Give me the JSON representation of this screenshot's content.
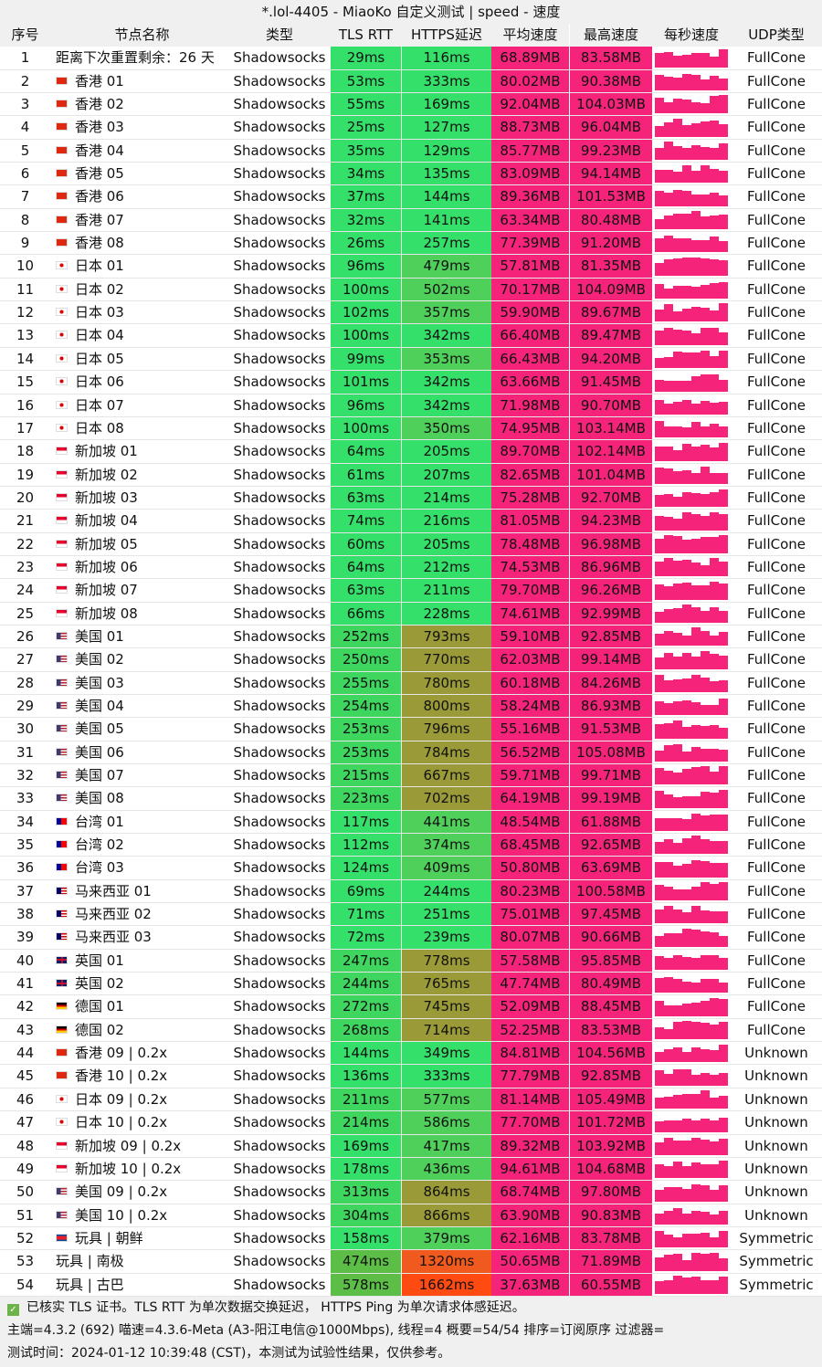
{
  "title": "*.lol-4405 - MiaoKo 自定义测试 | speed - 速度",
  "headers": [
    "序号",
    "节点名称",
    "类型",
    "TLS RTT",
    "HTTPS延迟",
    "平均速度",
    "最高速度",
    "每秒速度",
    "UDP类型"
  ],
  "colors": {
    "speed": "#f5247a",
    "green": "#35e06a",
    "olive": "#9a9a38",
    "orange": "#f05a1e",
    "header_bg": "#f0f0f0"
  },
  "rows": [
    [
      "1",
      "",
      "距离下次重置剩余：26 天",
      "Shadowsocks",
      "29ms",
      "116ms",
      "68.89MB",
      "83.58MB",
      "FullCone"
    ],
    [
      "2",
      "hk",
      "香港 01",
      "Shadowsocks",
      "53ms",
      "333ms",
      "80.02MB",
      "90.38MB",
      "FullCone"
    ],
    [
      "3",
      "hk",
      "香港 02",
      "Shadowsocks",
      "55ms",
      "169ms",
      "92.04MB",
      "104.03MB",
      "FullCone"
    ],
    [
      "4",
      "hk",
      "香港 03",
      "Shadowsocks",
      "25ms",
      "127ms",
      "88.73MB",
      "96.04MB",
      "FullCone"
    ],
    [
      "5",
      "hk",
      "香港 04",
      "Shadowsocks",
      "35ms",
      "129ms",
      "85.77MB",
      "99.23MB",
      "FullCone"
    ],
    [
      "6",
      "hk",
      "香港 05",
      "Shadowsocks",
      "34ms",
      "135ms",
      "83.09MB",
      "94.14MB",
      "FullCone"
    ],
    [
      "7",
      "hk",
      "香港 06",
      "Shadowsocks",
      "37ms",
      "144ms",
      "89.36MB",
      "101.53MB",
      "FullCone"
    ],
    [
      "8",
      "hk",
      "香港 07",
      "Shadowsocks",
      "32ms",
      "141ms",
      "63.34MB",
      "80.48MB",
      "FullCone"
    ],
    [
      "9",
      "hk",
      "香港 08",
      "Shadowsocks",
      "26ms",
      "257ms",
      "77.39MB",
      "91.20MB",
      "FullCone"
    ],
    [
      "10",
      "jp",
      "日本 01",
      "Shadowsocks",
      "96ms",
      "479ms",
      "57.81MB",
      "81.35MB",
      "FullCone"
    ],
    [
      "11",
      "jp",
      "日本 02",
      "Shadowsocks",
      "100ms",
      "502ms",
      "70.17MB",
      "104.09MB",
      "FullCone"
    ],
    [
      "12",
      "jp",
      "日本 03",
      "Shadowsocks",
      "102ms",
      "357ms",
      "59.90MB",
      "89.67MB",
      "FullCone"
    ],
    [
      "13",
      "jp",
      "日本 04",
      "Shadowsocks",
      "100ms",
      "342ms",
      "66.40MB",
      "89.47MB",
      "FullCone"
    ],
    [
      "14",
      "jp",
      "日本 05",
      "Shadowsocks",
      "99ms",
      "353ms",
      "66.43MB",
      "94.20MB",
      "FullCone"
    ],
    [
      "15",
      "jp",
      "日本 06",
      "Shadowsocks",
      "101ms",
      "342ms",
      "63.66MB",
      "91.45MB",
      "FullCone"
    ],
    [
      "16",
      "jp",
      "日本 07",
      "Shadowsocks",
      "96ms",
      "342ms",
      "71.98MB",
      "90.70MB",
      "FullCone"
    ],
    [
      "17",
      "jp",
      "日本 08",
      "Shadowsocks",
      "100ms",
      "350ms",
      "74.95MB",
      "103.14MB",
      "FullCone"
    ],
    [
      "18",
      "sg",
      "新加坡 01",
      "Shadowsocks",
      "64ms",
      "205ms",
      "89.70MB",
      "102.14MB",
      "FullCone"
    ],
    [
      "19",
      "sg",
      "新加坡 02",
      "Shadowsocks",
      "61ms",
      "207ms",
      "82.65MB",
      "101.04MB",
      "FullCone"
    ],
    [
      "20",
      "sg",
      "新加坡 03",
      "Shadowsocks",
      "63ms",
      "214ms",
      "75.28MB",
      "92.70MB",
      "FullCone"
    ],
    [
      "21",
      "sg",
      "新加坡 04",
      "Shadowsocks",
      "74ms",
      "216ms",
      "81.05MB",
      "94.23MB",
      "FullCone"
    ],
    [
      "22",
      "sg",
      "新加坡 05",
      "Shadowsocks",
      "60ms",
      "205ms",
      "78.48MB",
      "96.98MB",
      "FullCone"
    ],
    [
      "23",
      "sg",
      "新加坡 06",
      "Shadowsocks",
      "64ms",
      "212ms",
      "74.53MB",
      "86.96MB",
      "FullCone"
    ],
    [
      "24",
      "sg",
      "新加坡 07",
      "Shadowsocks",
      "63ms",
      "211ms",
      "79.70MB",
      "96.26MB",
      "FullCone"
    ],
    [
      "25",
      "sg",
      "新加坡 08",
      "Shadowsocks",
      "66ms",
      "228ms",
      "74.61MB",
      "92.99MB",
      "FullCone"
    ],
    [
      "26",
      "us",
      "美国 01",
      "Shadowsocks",
      "252ms",
      "793ms",
      "59.10MB",
      "92.85MB",
      "FullCone"
    ],
    [
      "27",
      "us",
      "美国 02",
      "Shadowsocks",
      "250ms",
      "770ms",
      "62.03MB",
      "99.14MB",
      "FullCone"
    ],
    [
      "28",
      "us",
      "美国 03",
      "Shadowsocks",
      "255ms",
      "780ms",
      "60.18MB",
      "84.26MB",
      "FullCone"
    ],
    [
      "29",
      "us",
      "美国 04",
      "Shadowsocks",
      "254ms",
      "800ms",
      "58.24MB",
      "86.93MB",
      "FullCone"
    ],
    [
      "30",
      "us",
      "美国 05",
      "Shadowsocks",
      "253ms",
      "796ms",
      "55.16MB",
      "91.53MB",
      "FullCone"
    ],
    [
      "31",
      "us",
      "美国 06",
      "Shadowsocks",
      "253ms",
      "784ms",
      "56.52MB",
      "105.08MB",
      "FullCone"
    ],
    [
      "32",
      "us",
      "美国 07",
      "Shadowsocks",
      "215ms",
      "667ms",
      "59.71MB",
      "99.71MB",
      "FullCone"
    ],
    [
      "33",
      "us",
      "美国 08",
      "Shadowsocks",
      "223ms",
      "702ms",
      "64.19MB",
      "99.19MB",
      "FullCone"
    ],
    [
      "34",
      "tw",
      "台湾 01",
      "Shadowsocks",
      "117ms",
      "441ms",
      "48.54MB",
      "61.88MB",
      "FullCone"
    ],
    [
      "35",
      "tw",
      "台湾 02",
      "Shadowsocks",
      "112ms",
      "374ms",
      "68.45MB",
      "92.65MB",
      "FullCone"
    ],
    [
      "36",
      "tw",
      "台湾 03",
      "Shadowsocks",
      "124ms",
      "409ms",
      "50.80MB",
      "63.69MB",
      "FullCone"
    ],
    [
      "37",
      "my",
      "马来西亚 01",
      "Shadowsocks",
      "69ms",
      "244ms",
      "80.23MB",
      "100.58MB",
      "FullCone"
    ],
    [
      "38",
      "my",
      "马来西亚 02",
      "Shadowsocks",
      "71ms",
      "251ms",
      "75.01MB",
      "97.45MB",
      "FullCone"
    ],
    [
      "39",
      "my",
      "马来西亚 03",
      "Shadowsocks",
      "72ms",
      "239ms",
      "80.07MB",
      "90.66MB",
      "FullCone"
    ],
    [
      "40",
      "uk",
      "英国 01",
      "Shadowsocks",
      "247ms",
      "778ms",
      "57.58MB",
      "95.85MB",
      "FullCone"
    ],
    [
      "41",
      "uk",
      "英国 02",
      "Shadowsocks",
      "244ms",
      "765ms",
      "47.74MB",
      "80.49MB",
      "FullCone"
    ],
    [
      "42",
      "de",
      "德国 01",
      "Shadowsocks",
      "272ms",
      "745ms",
      "52.09MB",
      "88.45MB",
      "FullCone"
    ],
    [
      "43",
      "de",
      "德国 02",
      "Shadowsocks",
      "268ms",
      "714ms",
      "52.25MB",
      "83.53MB",
      "FullCone"
    ],
    [
      "44",
      "hk",
      "香港 09 | 0.2x",
      "Shadowsocks",
      "144ms",
      "349ms",
      "84.81MB",
      "104.56MB",
      "Unknown"
    ],
    [
      "45",
      "hk",
      "香港 10 | 0.2x",
      "Shadowsocks",
      "136ms",
      "333ms",
      "77.79MB",
      "92.85MB",
      "Unknown"
    ],
    [
      "46",
      "jp",
      "日本 09 | 0.2x",
      "Shadowsocks",
      "211ms",
      "577ms",
      "81.14MB",
      "105.49MB",
      "Unknown"
    ],
    [
      "47",
      "jp",
      "日本 10 | 0.2x",
      "Shadowsocks",
      "214ms",
      "586ms",
      "77.70MB",
      "101.72MB",
      "Unknown"
    ],
    [
      "48",
      "sg",
      "新加坡 09 | 0.2x",
      "Shadowsocks",
      "169ms",
      "417ms",
      "89.32MB",
      "103.92MB",
      "Unknown"
    ],
    [
      "49",
      "sg",
      "新加坡 10 | 0.2x",
      "Shadowsocks",
      "178ms",
      "436ms",
      "94.61MB",
      "104.68MB",
      "Unknown"
    ],
    [
      "50",
      "us",
      "美国 09 | 0.2x",
      "Shadowsocks",
      "313ms",
      "864ms",
      "68.74MB",
      "97.80MB",
      "Unknown"
    ],
    [
      "51",
      "us",
      "美国 10 | 0.2x",
      "Shadowsocks",
      "304ms",
      "866ms",
      "63.90MB",
      "90.83MB",
      "Unknown"
    ],
    [
      "52",
      "kp",
      "玩具 | 朝鲜",
      "Shadowsocks",
      "158ms",
      "379ms",
      "62.16MB",
      "83.78MB",
      "Symmetric"
    ],
    [
      "53",
      "",
      "玩具 | 南极",
      "Shadowsocks",
      "474ms",
      "1320ms",
      "50.65MB",
      "71.89MB",
      "Symmetric"
    ],
    [
      "54",
      "",
      "玩具 | 古巴",
      "Shadowsocks",
      "578ms",
      "1662ms",
      "37.63MB",
      "60.55MB",
      "Symmetric"
    ]
  ],
  "footer": {
    "line1": "已核实 TLS 证书。TLS RTT 为单次数据交换延迟， HTTPS Ping 为单次请求体感延迟。",
    "line2": "主端=4.3.2 (692) 喵速=4.3.6-Meta (A3-阳江电信@1000Mbps), 线程=4 概要=54/54 排序=订阅原序 过滤器=",
    "line3": "测试时间：2024-01-12 10:39:48 (CST)，本测试为试验性结果，仅供参考。"
  }
}
